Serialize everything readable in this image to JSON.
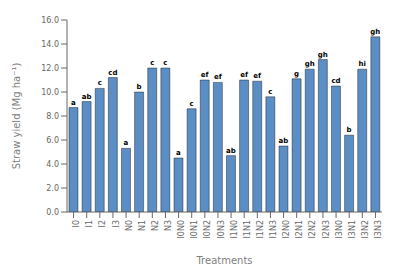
{
  "chart_data": {
    "type": "bar",
    "xlabel": "Treatments",
    "ylabel": "Straw yield (Mg ha⁻¹)",
    "categories": [
      "I0",
      "I1",
      "I2",
      "I3",
      "N0",
      "N1",
      "N2",
      "N3",
      "I0N0",
      "I0N1",
      "I0N2",
      "I0N3",
      "I1N0",
      "I1N1",
      "I1N2",
      "I1N3",
      "I2N0",
      "I2N1",
      "I2N2",
      "I2N3",
      "I3N0",
      "I3N1",
      "I3N2",
      "I3N3"
    ],
    "values": [
      8.7,
      9.2,
      10.3,
      11.2,
      5.3,
      10.0,
      12.0,
      12.0,
      4.5,
      8.6,
      11.0,
      10.8,
      4.7,
      11.0,
      10.9,
      9.6,
      5.5,
      11.1,
      11.9,
      12.7,
      10.5,
      6.4,
      11.9,
      14.6
    ],
    "annotations": [
      "a",
      "ab",
      "c",
      "cd",
      "a",
      "b",
      "c",
      "c",
      "a",
      "c",
      "ef",
      "ef",
      "ab",
      "ef",
      "ef",
      "c",
      "ab",
      "g",
      "gh",
      "gh",
      "cd",
      "b",
      "hi",
      "gh"
    ],
    "color": "#5b8ec4",
    "ylim": [
      0,
      16.0
    ],
    "yticks": [
      {
        "value": 0,
        "label": "0.0"
      },
      {
        "value": 2,
        "label": "2.0"
      },
      {
        "value": 4,
        "label": "4.0"
      },
      {
        "value": 6,
        "label": "6.0"
      },
      {
        "value": 8,
        "label": "8.0"
      },
      {
        "value": 10,
        "label": "10.0"
      },
      {
        "value": 12,
        "label": "12.0"
      },
      {
        "value": 14,
        "label": "14.0"
      },
      {
        "value": 16,
        "label": "16.0"
      }
    ],
    "grid": false
  }
}
